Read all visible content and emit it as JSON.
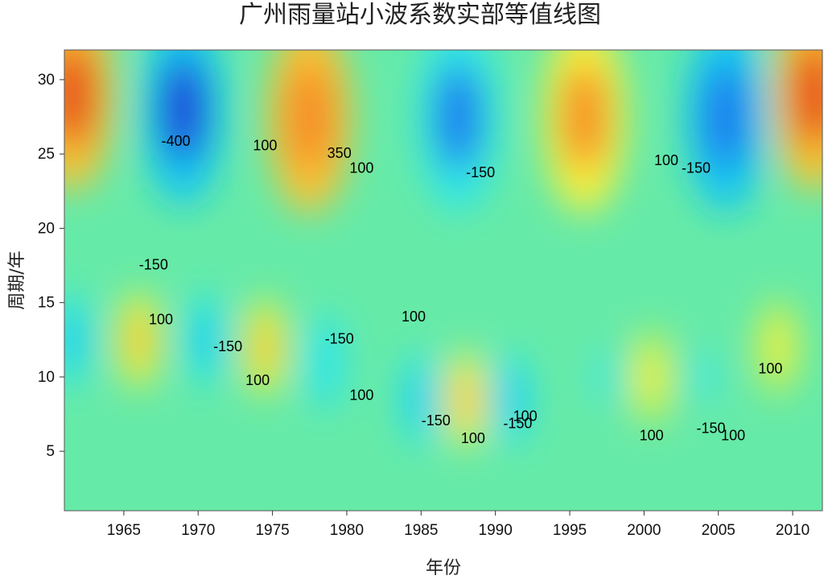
{
  "chart_data": {
    "type": "heatmap",
    "title": "广州雨量站小波系数实部等值线图",
    "xlabel": "年份",
    "ylabel": "周期/年",
    "xlim": [
      1961,
      2012
    ],
    "ylim": [
      1,
      32
    ],
    "x_ticks": [
      1965,
      1970,
      1975,
      1980,
      1985,
      1990,
      1995,
      2000,
      2005,
      2010
    ],
    "y_ticks": [
      5,
      10,
      15,
      20,
      25,
      30
    ],
    "colormap": [
      "#1a34d8",
      "#1f78ee",
      "#14c8f2",
      "#33e6e6",
      "#66eaa8",
      "#c8f050",
      "#f8f03c",
      "#fbc230",
      "#f58a28",
      "#e6401c"
    ],
    "value_range": [
      -450,
      450
    ],
    "grid": false,
    "legend": "none",
    "centers": [
      {
        "x": 1961.5,
        "y": 29,
        "value": 450
      },
      {
        "x": 1969.0,
        "y": 28,
        "value": -420
      },
      {
        "x": 1977.5,
        "y": 27.5,
        "value": 380
      },
      {
        "x": 1987.5,
        "y": 27.5,
        "value": -330
      },
      {
        "x": 1996.0,
        "y": 27.5,
        "value": 350
      },
      {
        "x": 2005.5,
        "y": 27.5,
        "value": -400
      },
      {
        "x": 2011.5,
        "y": 29,
        "value": 420
      },
      {
        "x": 1961.5,
        "y": 12.5,
        "value": -250
      },
      {
        "x": 1966.0,
        "y": 12.5,
        "value": 280
      },
      {
        "x": 1970.5,
        "y": 12.5,
        "value": -250
      },
      {
        "x": 1974.5,
        "y": 12.0,
        "value": 230
      },
      {
        "x": 1978.5,
        "y": 11.0,
        "value": -200
      },
      {
        "x": 1985.0,
        "y": 8.5,
        "value": -220
      },
      {
        "x": 1988.0,
        "y": 8.5,
        "value": 260
      },
      {
        "x": 1991.0,
        "y": 8.5,
        "value": -220
      },
      {
        "x": 1997.5,
        "y": 10.0,
        "value": -170
      },
      {
        "x": 2000.5,
        "y": 10.0,
        "value": 180
      },
      {
        "x": 2004.0,
        "y": 10.0,
        "value": -160
      },
      {
        "x": 2009.0,
        "y": 12.0,
        "value": 180
      }
    ],
    "contour_labels": [
      {
        "text": "-400",
        "x": 1968.5,
        "y": 25.8
      },
      {
        "text": "100",
        "x": 1974.5,
        "y": 25.5
      },
      {
        "text": "350",
        "x": 1979.5,
        "y": 25.0
      },
      {
        "text": "100",
        "x": 1981.0,
        "y": 24.0
      },
      {
        "text": "-150",
        "x": 1989.0,
        "y": 23.7
      },
      {
        "text": "100",
        "x": 2001.5,
        "y": 24.5
      },
      {
        "text": "-150",
        "x": 2003.5,
        "y": 24.0
      },
      {
        "text": "-150",
        "x": 1967.0,
        "y": 17.5
      },
      {
        "text": "100",
        "x": 1967.5,
        "y": 13.8
      },
      {
        "text": "-150",
        "x": 1972.0,
        "y": 12.0
      },
      {
        "text": "100",
        "x": 1974.0,
        "y": 9.7
      },
      {
        "text": "-150",
        "x": 1979.5,
        "y": 12.5
      },
      {
        "text": "100",
        "x": 1981.0,
        "y": 8.7
      },
      {
        "text": "100",
        "x": 1984.5,
        "y": 14.0
      },
      {
        "text": "-150",
        "x": 1986.0,
        "y": 7.0
      },
      {
        "text": "100",
        "x": 1988.5,
        "y": 5.8
      },
      {
        "text": "-150",
        "x": 1991.5,
        "y": 6.8
      },
      {
        "text": "100",
        "x": 1992.0,
        "y": 7.3
      },
      {
        "text": "100",
        "x": 2008.5,
        "y": 10.5
      },
      {
        "text": "100",
        "x": 2000.5,
        "y": 6.0
      },
      {
        "text": "-150",
        "x": 2004.5,
        "y": 6.5
      },
      {
        "text": "100",
        "x": 2006.0,
        "y": 6.0
      }
    ]
  }
}
